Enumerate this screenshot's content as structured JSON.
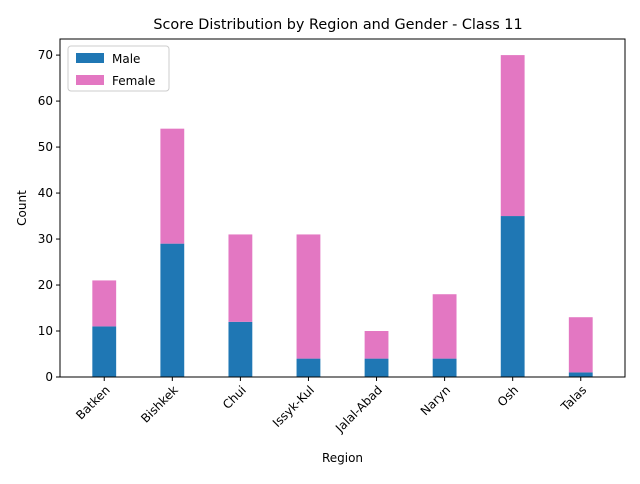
{
  "chart_data": {
    "type": "bar",
    "stacked": true,
    "title": "Score Distribution by Region and Gender - Class 11",
    "xlabel": "Region",
    "ylabel": "Count",
    "categories": [
      "Batken",
      "Bishkek",
      "Chui",
      "Issyk-Kul",
      "Jalal-Abad",
      "Naryn",
      "Osh",
      "Talas"
    ],
    "series": [
      {
        "name": "Male",
        "color": "#1f77b4",
        "values": [
          11,
          29,
          12,
          4,
          4,
          4,
          35,
          1
        ]
      },
      {
        "name": "Female",
        "color": "#e377c2",
        "values": [
          10,
          25,
          19,
          27,
          6,
          14,
          35,
          12
        ]
      }
    ],
    "ylim": [
      0,
      73.5
    ],
    "yticks": [
      0,
      10,
      20,
      30,
      40,
      50,
      60,
      70
    ],
    "legend": "top-left",
    "grid": false,
    "xtick_rotation": 45
  }
}
